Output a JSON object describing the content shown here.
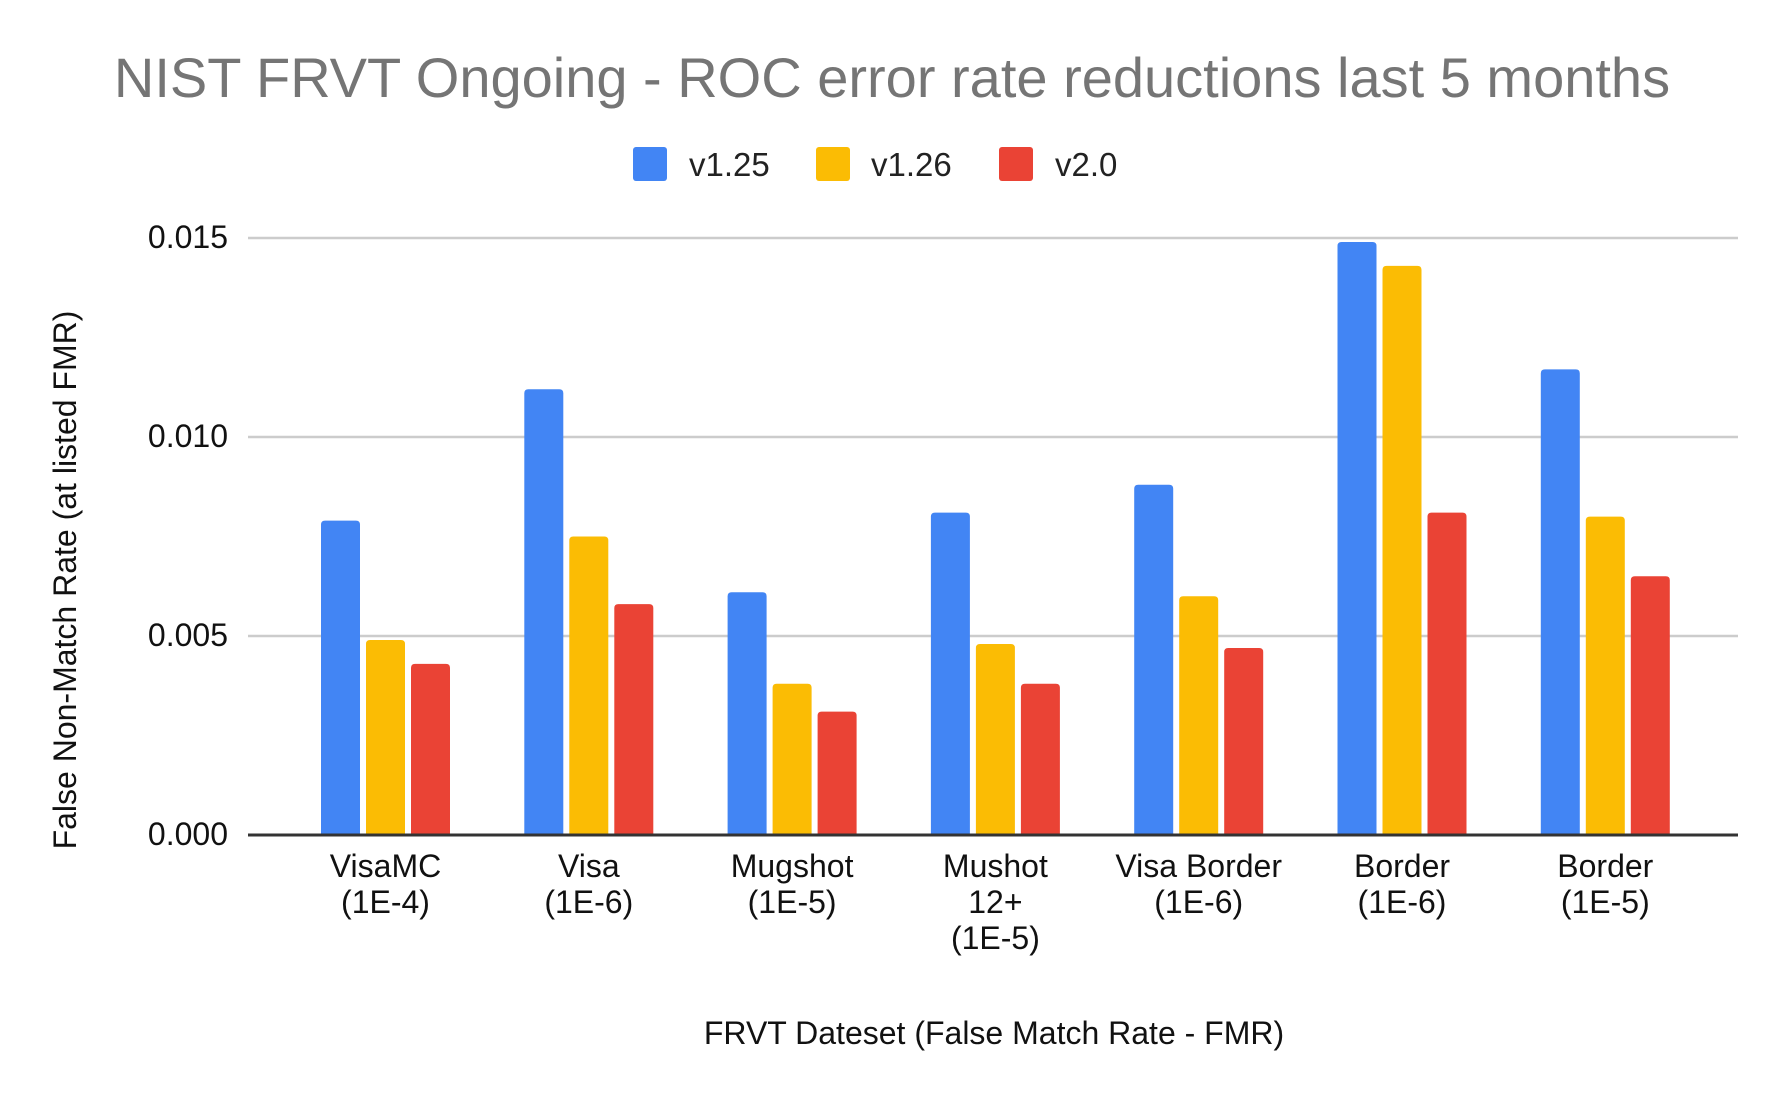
{
  "chart_data": {
    "type": "bar",
    "title": "NIST FRVT Ongoing - ROC error rate reductions last 5 months",
    "xlabel": "FRVT Dateset (False Match Rate - FMR)",
    "ylabel": "False Non-Match Rate (at listed FMR)",
    "ylim": [
      0,
      0.015
    ],
    "yticks": [
      0,
      0.005,
      0.01,
      0.015
    ],
    "ytick_labels": [
      "0.000",
      "0.005",
      "0.010",
      "0.015"
    ],
    "grid": true,
    "legend_position": "top-center",
    "categories": [
      [
        "VisaMC",
        "(1E-4)"
      ],
      [
        "Visa",
        "(1E-6)"
      ],
      [
        "Mugshot",
        "(1E-5)"
      ],
      [
        "Mushot",
        "12+",
        "(1E-5)"
      ],
      [
        "Visa Border",
        "(1E-6)"
      ],
      [
        "Border",
        "(1E-6)"
      ],
      [
        "Border",
        "(1E-5)"
      ]
    ],
    "series": [
      {
        "name": "v1.25",
        "color": "#4285f4",
        "values": [
          0.0079,
          0.0112,
          0.0061,
          0.0081,
          0.0088,
          0.0149,
          0.0117
        ]
      },
      {
        "name": "v1.26",
        "color": "#fbbc04",
        "values": [
          0.0049,
          0.0075,
          0.0038,
          0.0048,
          0.006,
          0.0143,
          0.008
        ]
      },
      {
        "name": "v2.0",
        "color": "#ea4335",
        "values": [
          0.0043,
          0.0058,
          0.0031,
          0.0038,
          0.0047,
          0.0081,
          0.0065
        ]
      }
    ]
  }
}
